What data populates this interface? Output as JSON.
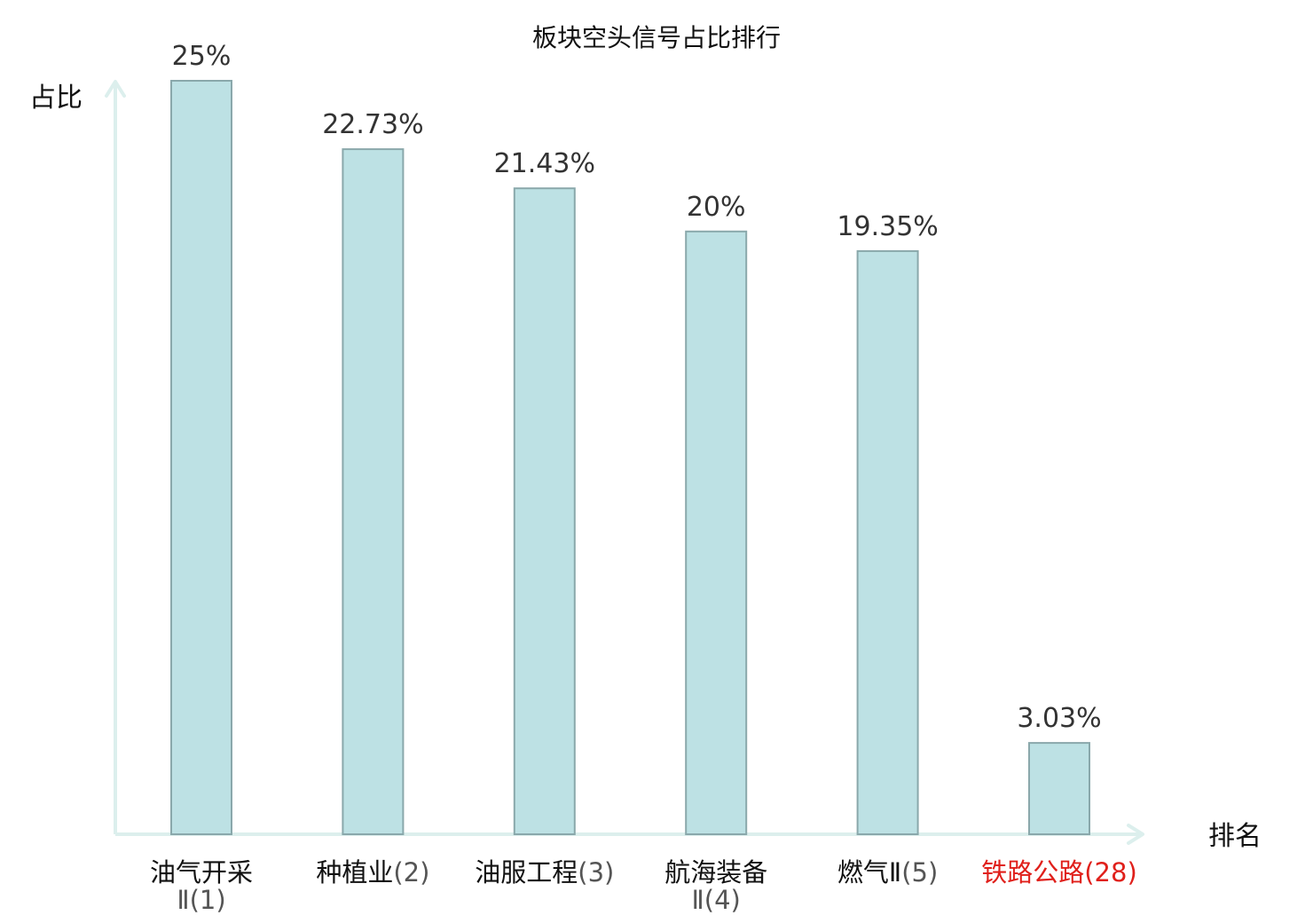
{
  "chart_data": {
    "type": "bar",
    "title": "板块空头信号占比排行",
    "ylabel": "占比",
    "xlabel": "排名",
    "ylim": [
      0,
      25
    ],
    "grid": false,
    "categories": [
      {
        "name": "油气开采Ⅱ",
        "rank": "(1)",
        "highlight": false
      },
      {
        "name": "种植业",
        "rank": "(2)",
        "highlight": false
      },
      {
        "name": "油服工程",
        "rank": "(3)",
        "highlight": false
      },
      {
        "name": "航海装备Ⅱ",
        "rank": "(4)",
        "highlight": false
      },
      {
        "name": "燃气Ⅱ",
        "rank": "(5)",
        "highlight": false
      },
      {
        "name": "铁路公路",
        "rank": "(28)",
        "highlight": true
      }
    ],
    "values": [
      25,
      22.73,
      21.43,
      20,
      19.35,
      3.03
    ],
    "value_labels": [
      "25%",
      "22.73%",
      "21.43%",
      "20%",
      "19.35%",
      "3.03%"
    ]
  },
  "colors": {
    "bar_fill": "#bde1e4",
    "bar_stroke": "#8aa8ab",
    "axis": "#dcefed",
    "highlight": "#e0201b"
  }
}
